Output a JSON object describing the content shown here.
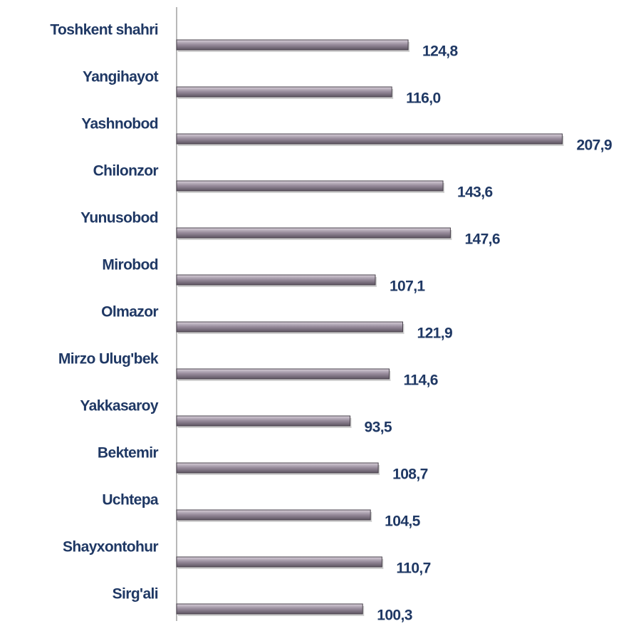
{
  "chart_data": {
    "type": "bar",
    "orientation": "horizontal",
    "categories": [
      "Toshkent shahri",
      "Yangihayot",
      "Yashnobod",
      "Chilonzor",
      "Yunusobod",
      "Mirobod",
      "Olmazor",
      "Mirzo Ulug'bek",
      "Yakkasaroy",
      "Bektemir",
      "Uchtepa",
      "Shayxontohur",
      "Sirg'ali"
    ],
    "values": [
      124.8,
      116.0,
      207.9,
      143.6,
      147.6,
      107.1,
      121.9,
      114.6,
      93.5,
      108.7,
      104.5,
      110.7,
      100.3
    ],
    "value_labels": [
      "124,8",
      "116,0",
      "207,9",
      "143,6",
      "147,6",
      "107,1",
      "121,9",
      "114,6",
      "93,5",
      "108,7",
      "104,5",
      "110,7",
      "100,3"
    ],
    "color": "#9b8f9f",
    "xlim": [
      0,
      215
    ]
  }
}
